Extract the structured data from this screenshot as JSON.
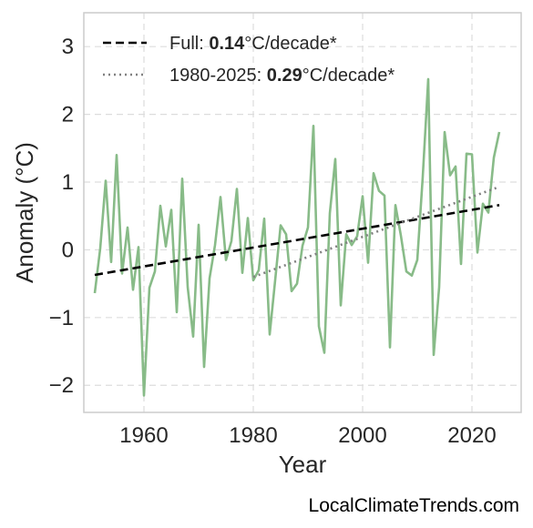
{
  "chart_data": {
    "type": "line",
    "xlabel": "Year",
    "ylabel": "Anomaly (°C)",
    "xlim": [
      1949,
      2029
    ],
    "ylim": [
      -2.4,
      3.5
    ],
    "x_ticks": [
      1960,
      1980,
      2000,
      2020
    ],
    "y_ticks": [
      3,
      2,
      1,
      0,
      -1,
      -2
    ],
    "y_tick_labels": [
      "3",
      "2",
      "1",
      "0",
      "−1",
      "−2"
    ],
    "grid": true,
    "legend_placement": "top-left",
    "colors": {
      "data": "#88bb88",
      "trend_full": "#000000",
      "trend_recent": "#808080",
      "grid": "#dddddd",
      "frame": "#cccccc"
    },
    "series": [
      {
        "style": "solid",
        "x": [
          1951,
          1952,
          1953,
          1954,
          1955,
          1956,
          1957,
          1958,
          1959,
          1960,
          1961,
          1962,
          1963,
          1964,
          1965,
          1966,
          1967,
          1968,
          1969,
          1970,
          1971,
          1972,
          1973,
          1974,
          1975,
          1976,
          1977,
          1978,
          1979,
          1980,
          1981,
          1982,
          1983,
          1984,
          1985,
          1986,
          1987,
          1988,
          1989,
          1990,
          1991,
          1992,
          1993,
          1994,
          1995,
          1996,
          1997,
          1998,
          1999,
          2000,
          2001,
          2002,
          2003,
          2004,
          2005,
          2006,
          2007,
          2008,
          2009,
          2010,
          2011,
          2012,
          2013,
          2014,
          2015,
          2016,
          2017,
          2018,
          2019,
          2020,
          2021,
          2022,
          2023,
          2024,
          2025
        ],
        "values": [
          -0.64,
          0.02,
          1.02,
          -0.18,
          1.4,
          -0.35,
          0.33,
          -0.59,
          0.04,
          -2.15,
          -0.56,
          -0.32,
          0.65,
          0.05,
          0.59,
          -0.92,
          1.05,
          -0.55,
          -1.28,
          0.37,
          -1.73,
          -0.42,
          0.07,
          0.78,
          -0.15,
          0.13,
          0.9,
          -0.34,
          0.47,
          -0.45,
          -0.3,
          0.46,
          -1.25,
          -0.45,
          0.36,
          0.23,
          -0.61,
          -0.5,
          0.06,
          0.33,
          1.83,
          -1.13,
          -1.52,
          0.54,
          1.34,
          -0.82,
          0.23,
          0.07,
          0.2,
          0.79,
          -0.19,
          1.13,
          0.87,
          0.8,
          -1.44,
          0.66,
          0.21,
          -0.32,
          -0.38,
          -0.15,
          1.08,
          2.52,
          -1.55,
          -0.55,
          1.74,
          1.1,
          1.23,
          -0.21,
          1.42,
          1.41,
          -0.04,
          0.68,
          0.55,
          1.36,
          1.74
        ]
      },
      {
        "name": "Full: ",
        "rate": "0.14",
        "unit": "°C/decade*",
        "style": "dashed",
        "x": [
          1951,
          2025
        ],
        "values": [
          -0.37,
          0.66
        ]
      },
      {
        "name": "1980-2025: ",
        "rate": "0.29",
        "unit": "°C/decade*",
        "style": "dotted",
        "x": [
          1980,
          2025
        ],
        "values": [
          -0.4,
          0.93
        ]
      }
    ]
  },
  "credit": "LocalClimateTrends.com"
}
